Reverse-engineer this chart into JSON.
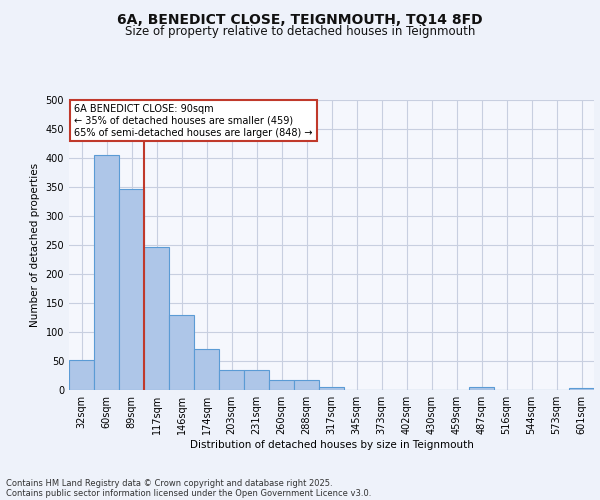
{
  "title_line1": "6A, BENEDICT CLOSE, TEIGNMOUTH, TQ14 8FD",
  "title_line2": "Size of property relative to detached houses in Teignmouth",
  "xlabel": "Distribution of detached houses by size in Teignmouth",
  "ylabel": "Number of detached properties",
  "categories": [
    "32sqm",
    "60sqm",
    "89sqm",
    "117sqm",
    "146sqm",
    "174sqm",
    "203sqm",
    "231sqm",
    "260sqm",
    "288sqm",
    "317sqm",
    "345sqm",
    "373sqm",
    "402sqm",
    "430sqm",
    "459sqm",
    "487sqm",
    "516sqm",
    "544sqm",
    "573sqm",
    "601sqm"
  ],
  "values": [
    52,
    405,
    347,
    247,
    130,
    70,
    35,
    35,
    17,
    17,
    6,
    0,
    0,
    0,
    0,
    0,
    6,
    0,
    0,
    0,
    3
  ],
  "bar_color": "#aec6e8",
  "bar_edge_color": "#5b9bd5",
  "bar_edge_width": 0.8,
  "vline_color": "#c0392b",
  "annotation_text": "6A BENEDICT CLOSE: 90sqm\n← 35% of detached houses are smaller (459)\n65% of semi-detached houses are larger (848) →",
  "annotation_box_color": "#ffffff",
  "annotation_box_edge": "#c0392b",
  "annotation_fontsize": 7.0,
  "ylim": [
    0,
    500
  ],
  "yticks": [
    0,
    50,
    100,
    150,
    200,
    250,
    300,
    350,
    400,
    450,
    500
  ],
  "footer_line1": "Contains HM Land Registry data © Crown copyright and database right 2025.",
  "footer_line2": "Contains public sector information licensed under the Open Government Licence v3.0.",
  "footer_fontsize": 6.0,
  "bg_color": "#eef2fa",
  "plot_bg_color": "#f5f7fd",
  "grid_color": "#c8cfe0",
  "title_fontsize": 10,
  "subtitle_fontsize": 8.5
}
